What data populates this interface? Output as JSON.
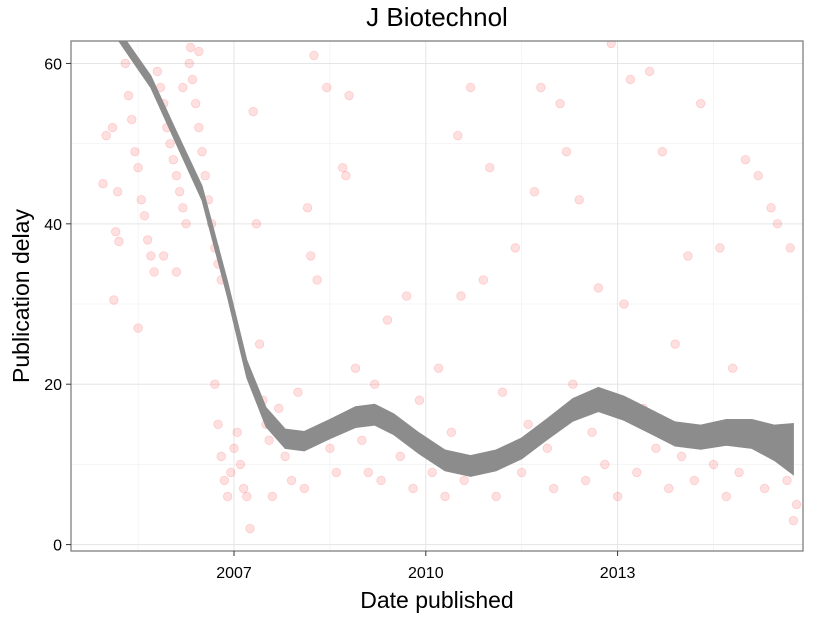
{
  "chart_data": {
    "type": "scatter",
    "title": "J Biotechnol",
    "xlabel": "Date published",
    "ylabel": "Publication delay",
    "x_ticks": [
      {
        "label": "2007",
        "value": 2007.0
      },
      {
        "label": "2010",
        "value": 2010.0
      },
      {
        "label": "2013",
        "value": 2013.0
      }
    ],
    "y_ticks": [
      0,
      20,
      40,
      60
    ],
    "xlim": [
      2004.45,
      2015.9
    ],
    "ylim": [
      -0.8,
      62.8
    ],
    "grid": true,
    "point_color": "#ff0000",
    "point_alpha": 0.12,
    "smooth_color": "#8c8c8c",
    "points": [
      [
        2004.95,
        45
      ],
      [
        2005.0,
        51
      ],
      [
        2005.1,
        52
      ],
      [
        2005.12,
        30.5
      ],
      [
        2005.15,
        39
      ],
      [
        2005.2,
        37.8
      ],
      [
        2005.18,
        44
      ],
      [
        2005.3,
        60
      ],
      [
        2005.35,
        56
      ],
      [
        2005.4,
        53
      ],
      [
        2005.45,
        49
      ],
      [
        2005.5,
        47
      ],
      [
        2005.55,
        43
      ],
      [
        2005.6,
        41
      ],
      [
        2005.65,
        38
      ],
      [
        2005.7,
        36
      ],
      [
        2005.75,
        34
      ],
      [
        2005.8,
        59
      ],
      [
        2005.85,
        57
      ],
      [
        2005.9,
        55
      ],
      [
        2005.95,
        52
      ],
      [
        2006.0,
        50
      ],
      [
        2006.05,
        48
      ],
      [
        2006.1,
        46
      ],
      [
        2006.15,
        44
      ],
      [
        2006.2,
        42
      ],
      [
        2006.25,
        40
      ],
      [
        2006.3,
        60
      ],
      [
        2006.35,
        58
      ],
      [
        2006.4,
        55
      ],
      [
        2006.45,
        52
      ],
      [
        2006.5,
        49
      ],
      [
        2006.55,
        46
      ],
      [
        2006.6,
        43
      ],
      [
        2006.65,
        40
      ],
      [
        2006.7,
        37
      ],
      [
        2006.75,
        35
      ],
      [
        2006.8,
        33
      ],
      [
        2005.5,
        27
      ],
      [
        2005.9,
        36
      ],
      [
        2006.1,
        34
      ],
      [
        2006.2,
        57
      ],
      [
        2006.32,
        62
      ],
      [
        2006.45,
        61.5
      ],
      [
        2006.7,
        20
      ],
      [
        2006.75,
        15
      ],
      [
        2006.8,
        11
      ],
      [
        2006.85,
        8
      ],
      [
        2006.9,
        6
      ],
      [
        2006.95,
        9
      ],
      [
        2007.0,
        12
      ],
      [
        2007.05,
        14
      ],
      [
        2007.1,
        10
      ],
      [
        2007.15,
        7
      ],
      [
        2007.2,
        6
      ],
      [
        2007.25,
        2
      ],
      [
        2007.3,
        54
      ],
      [
        2007.35,
        40
      ],
      [
        2007.4,
        25
      ],
      [
        2007.45,
        18
      ],
      [
        2007.5,
        15
      ],
      [
        2007.55,
        13
      ],
      [
        2007.6,
        6
      ],
      [
        2007.7,
        17
      ],
      [
        2007.8,
        11
      ],
      [
        2007.9,
        8
      ],
      [
        2008.0,
        19
      ],
      [
        2008.1,
        7
      ],
      [
        2008.15,
        42
      ],
      [
        2008.2,
        36
      ],
      [
        2008.25,
        61
      ],
      [
        2008.3,
        33
      ],
      [
        2008.45,
        57
      ],
      [
        2008.5,
        12
      ],
      [
        2008.6,
        9
      ],
      [
        2008.7,
        47
      ],
      [
        2008.75,
        46
      ],
      [
        2008.8,
        56
      ],
      [
        2008.9,
        22
      ],
      [
        2009.0,
        13
      ],
      [
        2009.1,
        9
      ],
      [
        2009.2,
        20
      ],
      [
        2009.3,
        8
      ],
      [
        2009.4,
        28
      ],
      [
        2009.5,
        15
      ],
      [
        2009.6,
        11
      ],
      [
        2009.7,
        31
      ],
      [
        2009.8,
        7
      ],
      [
        2009.9,
        18
      ],
      [
        2010.0,
        12
      ],
      [
        2010.1,
        9
      ],
      [
        2010.2,
        22
      ],
      [
        2010.3,
        6
      ],
      [
        2010.4,
        14
      ],
      [
        2010.5,
        51
      ],
      [
        2010.55,
        31
      ],
      [
        2010.6,
        8
      ],
      [
        2010.7,
        57
      ],
      [
        2010.8,
        10
      ],
      [
        2010.9,
        33
      ],
      [
        2011.0,
        47
      ],
      [
        2011.1,
        6
      ],
      [
        2011.2,
        19
      ],
      [
        2011.3,
        11
      ],
      [
        2011.4,
        37
      ],
      [
        2011.5,
        9
      ],
      [
        2011.6,
        15
      ],
      [
        2011.7,
        44
      ],
      [
        2011.8,
        57
      ],
      [
        2011.9,
        12
      ],
      [
        2012.0,
        7
      ],
      [
        2012.1,
        55
      ],
      [
        2012.2,
        49
      ],
      [
        2012.3,
        20
      ],
      [
        2012.4,
        43
      ],
      [
        2012.5,
        8
      ],
      [
        2012.6,
        14
      ],
      [
        2012.7,
        32
      ],
      [
        2012.8,
        10
      ],
      [
        2012.9,
        62.5
      ],
      [
        2013.0,
        6
      ],
      [
        2013.1,
        30
      ],
      [
        2013.2,
        58
      ],
      [
        2013.3,
        9
      ],
      [
        2013.4,
        17
      ],
      [
        2013.5,
        59
      ],
      [
        2013.6,
        12
      ],
      [
        2013.7,
        49
      ],
      [
        2013.8,
        7
      ],
      [
        2013.9,
        25
      ],
      [
        2014.0,
        11
      ],
      [
        2014.1,
        36
      ],
      [
        2014.2,
        8
      ],
      [
        2014.3,
        55
      ],
      [
        2014.4,
        14
      ],
      [
        2014.5,
        10
      ],
      [
        2014.6,
        37
      ],
      [
        2014.7,
        6
      ],
      [
        2014.8,
        22
      ],
      [
        2014.9,
        9
      ],
      [
        2015.0,
        48
      ],
      [
        2015.1,
        13
      ],
      [
        2015.2,
        46
      ],
      [
        2015.3,
        7
      ],
      [
        2015.4,
        42
      ],
      [
        2015.5,
        40
      ],
      [
        2015.6,
        12
      ],
      [
        2015.65,
        8
      ],
      [
        2015.7,
        37
      ],
      [
        2015.75,
        3
      ],
      [
        2015.8,
        5
      ]
    ],
    "smooth": {
      "x": [
        2004.95,
        2005.3,
        2005.7,
        2006.1,
        2006.5,
        2006.9,
        2007.2,
        2007.5,
        2007.8,
        2008.1,
        2008.5,
        2008.9,
        2009.2,
        2009.5,
        2009.9,
        2010.3,
        2010.7,
        2011.1,
        2011.5,
        2011.9,
        2012.3,
        2012.7,
        2013.1,
        2013.5,
        2013.9,
        2014.3,
        2014.7,
        2015.1,
        2015.45,
        2015.75
      ],
      "y": [
        66.4,
        62.3,
        57.7,
        50.7,
        43.8,
        31.8,
        21.9,
        15.9,
        13.2,
        12.9,
        14.4,
        15.9,
        16.2,
        15.0,
        12.6,
        10.5,
        9.8,
        10.5,
        12.0,
        14.4,
        16.8,
        18.1,
        17.0,
        15.4,
        13.8,
        13.4,
        14.0,
        13.8,
        12.7,
        11.9
      ],
      "band": [
        0.7,
        0.7,
        0.75,
        0.8,
        0.9,
        1.0,
        1.1,
        1.2,
        1.2,
        1.2,
        1.2,
        1.3,
        1.3,
        1.3,
        1.3,
        1.3,
        1.3,
        1.3,
        1.3,
        1.3,
        1.4,
        1.5,
        1.5,
        1.5,
        1.5,
        1.5,
        1.6,
        1.8,
        2.2,
        3.2
      ]
    }
  }
}
